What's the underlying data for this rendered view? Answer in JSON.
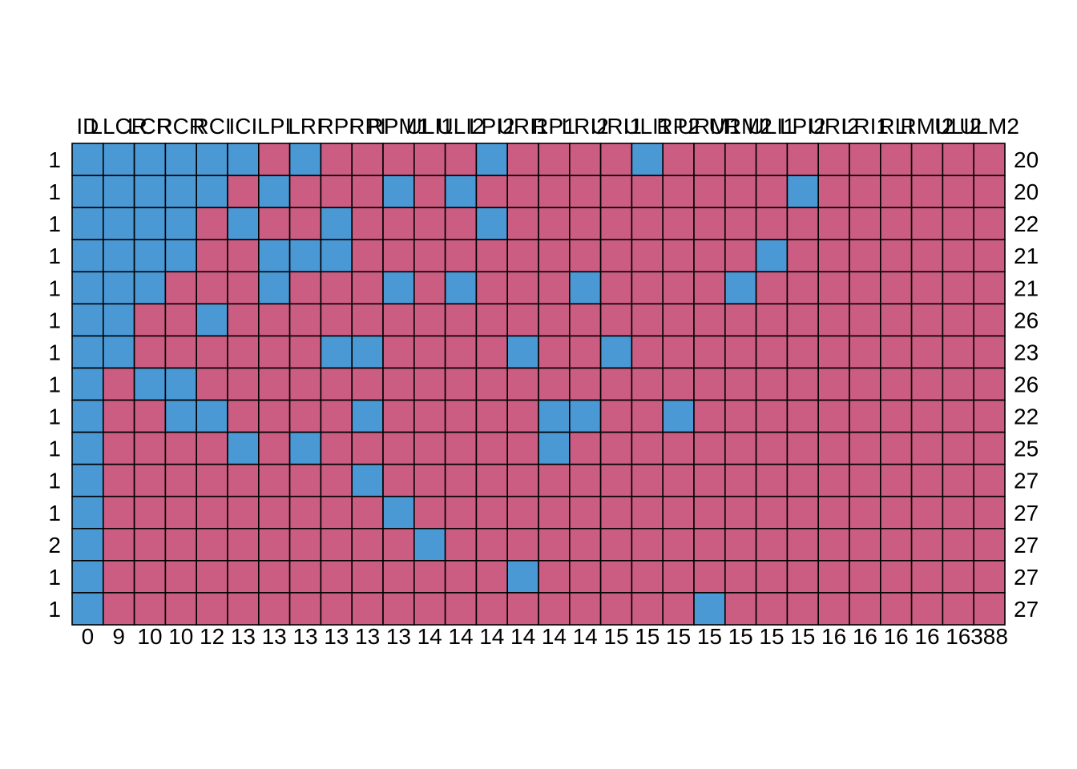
{
  "chart_data": {
    "type": "heatmap",
    "title": "",
    "colors": {
      "observed": "#4A98D4",
      "missing": "#CB5C82",
      "border": "#000000"
    },
    "columns": [
      "ID",
      "LLCR",
      "LCR",
      "RCR",
      "RCI",
      "ICI",
      "LPI",
      "LRI",
      "RPI",
      "RPI",
      "RPM1",
      "ULI1",
      "ULI2",
      "LPI2",
      "URI1",
      "RP1",
      "LRI2",
      "URI1",
      "ULI1",
      "RP2",
      "URM1",
      "URM2",
      "ULI1",
      "LPI2",
      "URI2",
      "LRI1",
      "RLI",
      "RMI2",
      "ULI2",
      "ULM2"
    ],
    "column_counts": [
      0,
      9,
      10,
      10,
      12,
      13,
      13,
      13,
      13,
      13,
      13,
      14,
      14,
      14,
      14,
      14,
      14,
      15,
      15,
      15,
      15,
      15,
      15,
      15,
      16,
      16,
      16,
      16,
      16,
      388
    ],
    "row_counts_left": [
      1,
      1,
      1,
      1,
      1,
      1,
      1,
      1,
      1,
      1,
      1,
      1,
      2,
      1,
      1
    ],
    "row_counts_right": [
      20,
      20,
      22,
      21,
      21,
      26,
      23,
      26,
      22,
      25,
      27,
      27,
      27,
      27,
      27
    ],
    "observed_columns_by_row": [
      [
        0,
        1,
        2,
        3,
        4,
        5,
        7,
        13,
        18
      ],
      [
        0,
        1,
        2,
        3,
        4,
        6,
        10,
        12,
        23
      ],
      [
        0,
        1,
        2,
        3,
        5,
        8,
        13
      ],
      [
        0,
        1,
        2,
        3,
        6,
        7,
        8,
        22
      ],
      [
        0,
        1,
        2,
        6,
        10,
        12,
        16,
        21
      ],
      [
        0,
        1,
        4
      ],
      [
        0,
        1,
        8,
        9,
        14,
        17
      ],
      [
        0,
        2,
        3
      ],
      [
        0,
        3,
        4,
        9,
        15,
        16,
        19
      ],
      [
        0,
        5,
        7,
        15
      ],
      [
        0,
        9
      ],
      [
        0,
        10
      ],
      [
        0,
        11
      ],
      [
        0,
        14
      ],
      [
        0,
        20
      ]
    ]
  }
}
